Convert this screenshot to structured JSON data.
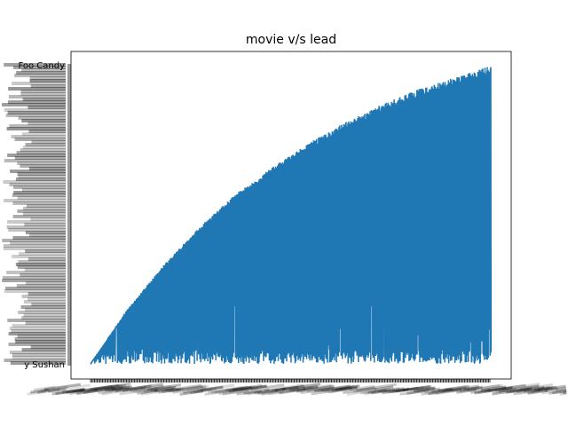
{
  "chart_data": {
    "type": "line",
    "title": "movie v/s lead",
    "xlabel": "",
    "ylabel": "",
    "grid": false,
    "legend": "none",
    "x_axis": {
      "type": "categorical",
      "tick_labels_overlapping": true,
      "tick_label_rotation": -25
    },
    "y_axis": {
      "type": "categorical",
      "tick_labels_overlapping": true
    },
    "series": [
      {
        "color": "#1f77b4",
        "description": "dense categorical line; each point jumps between a low category near the bottom and a rising upper envelope"
      }
    ],
    "upper_envelope_fraction": [
      0.0,
      0.18,
      0.33,
      0.46,
      0.57,
      0.66,
      0.74,
      0.81,
      0.87,
      0.92,
      0.96,
      1.0
    ],
    "visible_y_tick_fragments": {
      "top": "Foo Candy",
      "bottom": "y Sushan"
    },
    "visible_x_tick_fragments": {
      "left": "...",
      "right": "...ion"
    }
  }
}
